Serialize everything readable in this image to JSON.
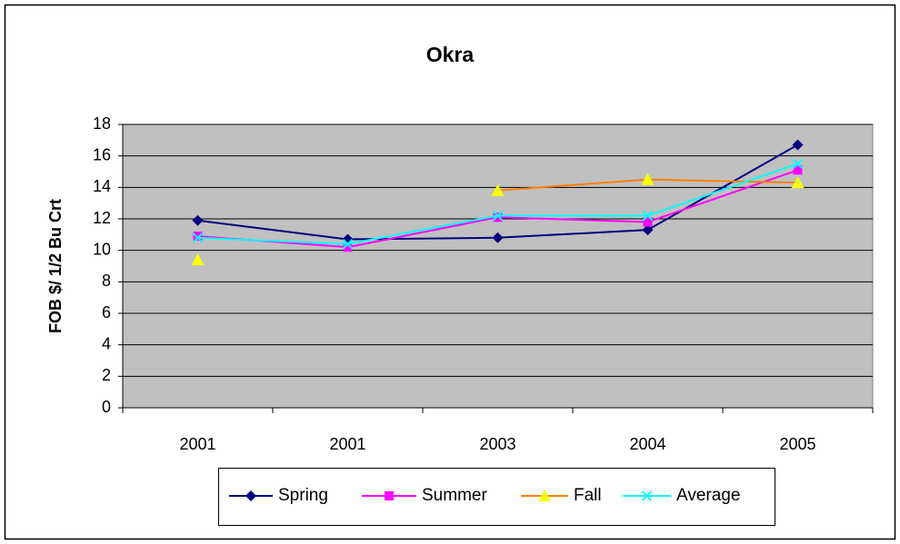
{
  "chart_data": {
    "type": "line",
    "title": "Okra",
    "y_label": "FOB $/ 1/2 Bu Crt",
    "categories": [
      "2001",
      "2001",
      "2003",
      "2004",
      "2005"
    ],
    "series": [
      {
        "name": "Spring",
        "color": "#000080",
        "marker_color": "#000080",
        "marker": "diamond",
        "values": [
          11.9,
          10.7,
          10.8,
          11.3,
          16.7
        ]
      },
      {
        "name": "Summer",
        "color": "#ff00ff",
        "marker_color": "#ff00ff",
        "marker": "square",
        "values": [
          10.9,
          10.2,
          12.1,
          11.8,
          15.1
        ]
      },
      {
        "name": "Fall",
        "color": "#ff8000",
        "marker_color": "#ffff00",
        "marker": "triangle",
        "values": [
          9.4,
          null,
          13.8,
          14.5,
          14.3
        ]
      },
      {
        "name": "Average",
        "color": "#00ffff",
        "marker_color": "#00ffff",
        "marker": "x",
        "values": [
          10.8,
          10.4,
          12.2,
          12.2,
          15.5
        ]
      }
    ],
    "ylim": [
      0,
      18
    ],
    "yticks": [
      0,
      2,
      4,
      6,
      8,
      10,
      12,
      14,
      16,
      18
    ],
    "grid": true,
    "legend": "bottom"
  }
}
